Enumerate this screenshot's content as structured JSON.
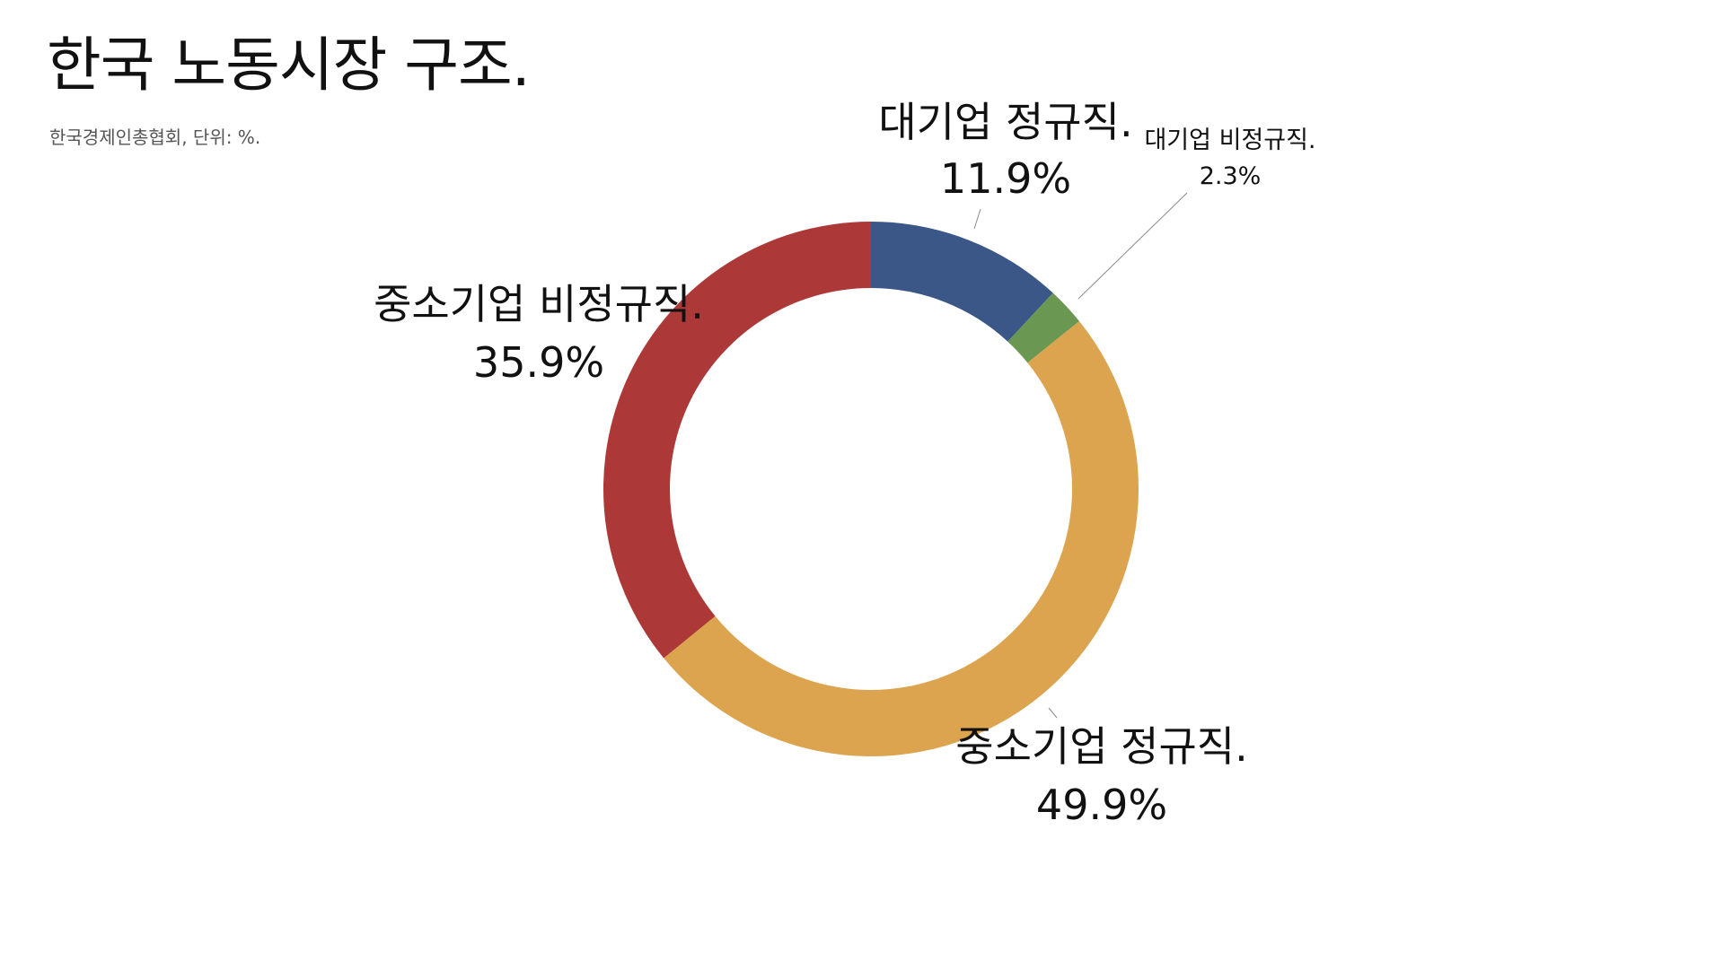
{
  "title": "한국 노동시장 구조.",
  "subtitle": "한국경제인총협회, 단위: %.",
  "chart_data": {
    "type": "pie",
    "donut": true,
    "unit": "%",
    "slices": [
      {
        "label": "대기업 정규직.",
        "value": 11.9,
        "value_label": "11.9%",
        "color": "#3A5788"
      },
      {
        "label": "대기업 비정규직.",
        "value": 2.3,
        "value_label": "2.3%",
        "color": "#6A9752"
      },
      {
        "label": "중소기업 정규직.",
        "value": 49.9,
        "value_label": "49.9%",
        "color": "#DDA450"
      },
      {
        "label": "중소기업 비정규직.",
        "value": 35.9,
        "value_label": "35.9%",
        "color": "#AC3937"
      }
    ],
    "legend": "none"
  }
}
